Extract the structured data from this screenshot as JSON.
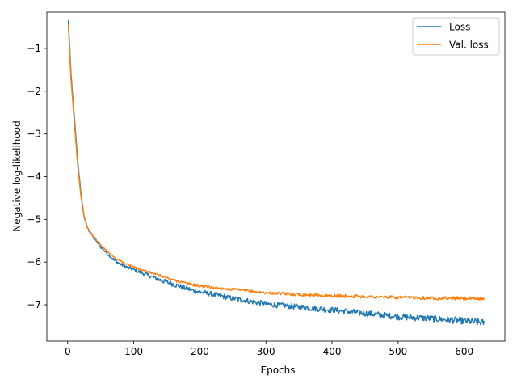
{
  "chart_data": {
    "type": "line",
    "title": "",
    "xlabel": "Epochs",
    "ylabel": "Negative log-likelihood",
    "xlim": [
      -31.5,
      661.5
    ],
    "ylim": [
      -7.85,
      -0.15
    ],
    "xticks": [
      0,
      100,
      200,
      300,
      400,
      500,
      600
    ],
    "xtick_labels": [
      "0",
      "100",
      "200",
      "300",
      "400",
      "500",
      "600"
    ],
    "yticks": [
      -7,
      -6,
      -5,
      -4,
      -3,
      -2,
      -1
    ],
    "ytick_labels": [
      "−7",
      "−6",
      "−5",
      "−4",
      "−3",
      "−2",
      "−1"
    ],
    "grid": false,
    "legend_position": "top-right",
    "series": [
      {
        "name": "Loss",
        "color": "#1f77b4",
        "noise": 0.05,
        "x": [
          1,
          5,
          10,
          15,
          20,
          25,
          30,
          40,
          50,
          60,
          70,
          80,
          90,
          100,
          120,
          140,
          160,
          180,
          200,
          250,
          300,
          350,
          400,
          450,
          500,
          550,
          600,
          630
        ],
        "y": [
          -0.35,
          -1.6,
          -2.6,
          -3.6,
          -4.4,
          -4.95,
          -5.2,
          -5.45,
          -5.65,
          -5.8,
          -5.95,
          -6.05,
          -6.12,
          -6.18,
          -6.3,
          -6.42,
          -6.52,
          -6.62,
          -6.7,
          -6.85,
          -6.98,
          -7.05,
          -7.12,
          -7.2,
          -7.28,
          -7.32,
          -7.38,
          -7.42
        ]
      },
      {
        "name": "Val. loss",
        "color": "#ff7f0e",
        "noise": 0.025,
        "x": [
          1,
          5,
          10,
          15,
          20,
          25,
          30,
          40,
          50,
          60,
          70,
          80,
          90,
          100,
          120,
          140,
          160,
          180,
          200,
          250,
          300,
          350,
          400,
          450,
          500,
          550,
          600,
          630
        ],
        "y": [
          -0.45,
          -1.7,
          -2.7,
          -3.7,
          -4.45,
          -4.95,
          -5.2,
          -5.42,
          -5.6,
          -5.75,
          -5.88,
          -5.98,
          -6.05,
          -6.12,
          -6.22,
          -6.32,
          -6.42,
          -6.5,
          -6.56,
          -6.64,
          -6.72,
          -6.76,
          -6.79,
          -6.81,
          -6.83,
          -6.84,
          -6.85,
          -6.86
        ]
      }
    ]
  }
}
